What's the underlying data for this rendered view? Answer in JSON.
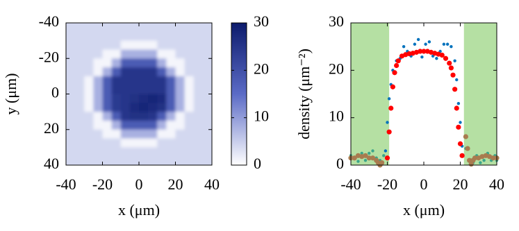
{
  "chart_data": [
    {
      "type": "heatmap",
      "xlabel": "x (μm)",
      "ylabel": "y (μm)",
      "xlim": [
        -40,
        40
      ],
      "xticks": [
        -40,
        -20,
        0,
        20,
        40
      ],
      "ylim": [
        40,
        -40
      ],
      "yticks": [
        -40,
        -20,
        0,
        20,
        40
      ],
      "colormap": [
        "#ffffff",
        "#5b6bc6",
        "#0c1b6c"
      ],
      "colorbar": {
        "lim": [
          0,
          30
        ],
        "ticks": [
          0,
          10,
          20,
          30
        ]
      },
      "x": [
        -37.5,
        -32.5,
        -27.5,
        -22.5,
        -17.5,
        -12.5,
        -7.5,
        -2.5,
        2.5,
        7.5,
        12.5,
        17.5,
        22.5,
        27.5,
        32.5,
        37.5
      ],
      "y": [
        -37.5,
        -32.5,
        -27.5,
        -22.5,
        -17.5,
        -12.5,
        -7.5,
        -2.5,
        2.5,
        7.5,
        12.5,
        17.5,
        22.5,
        27.5,
        32.5,
        37.5
      ],
      "z": [
        [
          4,
          4,
          4,
          4,
          4,
          4,
          4,
          4,
          4,
          4,
          4,
          4,
          4,
          4,
          4,
          4
        ],
        [
          4,
          4,
          4,
          4,
          4,
          4,
          4,
          4,
          4,
          4,
          4,
          4,
          4,
          4,
          4,
          4
        ],
        [
          4,
          4,
          4,
          4,
          4,
          4,
          1,
          1,
          1,
          1,
          4,
          4,
          4,
          4,
          4,
          4
        ],
        [
          4,
          4,
          4,
          4,
          1,
          1,
          8,
          8,
          8,
          8,
          1,
          1,
          4,
          4,
          4,
          4
        ],
        [
          4,
          4,
          4,
          1,
          1,
          8,
          18,
          18,
          18,
          18,
          8,
          1,
          1,
          4,
          4,
          4
        ],
        [
          4,
          4,
          4,
          1,
          8,
          18,
          25,
          25,
          25,
          25,
          18,
          8,
          1,
          4,
          4,
          4
        ],
        [
          4,
          4,
          1,
          8,
          18,
          25,
          25,
          25,
          25,
          25,
          25,
          18,
          8,
          1,
          4,
          4
        ],
        [
          4,
          4,
          1,
          8,
          18,
          25,
          25,
          25,
          25,
          25,
          25,
          18,
          8,
          1,
          4,
          4
        ],
        [
          4,
          4,
          1,
          8,
          18,
          24,
          25,
          26,
          27,
          28,
          27,
          18,
          8,
          1,
          4,
          4
        ],
        [
          4,
          4,
          1,
          8,
          18,
          24,
          25,
          27,
          28,
          27,
          26,
          18,
          8,
          1,
          4,
          4
        ],
        [
          4,
          4,
          4,
          1,
          8,
          18,
          25,
          26,
          26,
          25,
          18,
          8,
          1,
          4,
          4,
          4
        ],
        [
          4,
          4,
          4,
          1,
          1,
          8,
          18,
          18,
          18,
          18,
          8,
          1,
          1,
          4,
          4,
          4
        ],
        [
          4,
          4,
          4,
          4,
          1,
          1,
          8,
          8,
          8,
          8,
          1,
          1,
          4,
          4,
          4,
          4
        ],
        [
          4,
          4,
          4,
          4,
          4,
          4,
          1,
          1,
          1,
          1,
          4,
          4,
          4,
          4,
          4,
          4
        ],
        [
          4,
          4,
          4,
          4,
          4,
          4,
          4,
          4,
          4,
          4,
          4,
          4,
          4,
          4,
          4,
          4
        ],
        [
          4,
          4,
          4,
          4,
          4,
          4,
          4,
          4,
          4,
          4,
          4,
          4,
          4,
          4,
          4,
          4
        ]
      ]
    },
    {
      "type": "scatter",
      "xlabel": "x (μm)",
      "ylabel": "density (μm⁻²)",
      "xlim": [
        -40,
        40
      ],
      "xticks": [
        -40,
        -20,
        0,
        20,
        40
      ],
      "ylim": [
        0,
        30
      ],
      "yticks": [
        0,
        10,
        20,
        30
      ],
      "shaded_regions": [
        [
          -40,
          -19
        ],
        [
          22,
          40
        ]
      ],
      "shade_color": "#b5e0a3",
      "series": [
        {
          "color": "#0072bd",
          "size": 2.2,
          "x": [
            -21,
            -20,
            -19,
            -18,
            -17,
            -15,
            -13,
            -11,
            -9,
            -7,
            -5,
            -3,
            -1,
            1,
            3,
            5,
            7,
            9,
            11,
            13,
            15,
            17,
            18,
            19,
            20,
            21
          ],
          "values": [
            3,
            9,
            14,
            17,
            20,
            22,
            22.5,
            25,
            24,
            23,
            25.5,
            26.5,
            22.8,
            25.5,
            26,
            23,
            22.5,
            24,
            25.5,
            25.5,
            25,
            22,
            18,
            13,
            9,
            4
          ]
        },
        {
          "color": "#3aa58a",
          "size": 2.2,
          "x": [
            -40,
            -38,
            -36,
            -34,
            -32,
            -30,
            -28,
            -26,
            -24,
            -22,
            23,
            25,
            27,
            29,
            31,
            33,
            35,
            37,
            39,
            40
          ],
          "values": [
            2,
            1.5,
            0.8,
            2.5,
            1,
            2.5,
            3,
            1.5,
            1,
            2,
            3.5,
            1,
            0.5,
            2,
            0.5,
            1,
            2.5,
            1,
            2,
            1
          ]
        },
        {
          "color": "#a87b4f",
          "size": 3.6,
          "x": [
            -40,
            -38,
            -36,
            -34,
            -32,
            -30,
            -28,
            -26,
            -25,
            -24,
            -23,
            23,
            24,
            25,
            26,
            27,
            28,
            30,
            32,
            34,
            36,
            38,
            40
          ],
          "values": [
            1.5,
            1.5,
            2,
            1.8,
            2,
            1.5,
            1.5,
            1,
            0.5,
            0,
            0.5,
            6,
            3.5,
            1,
            0.2,
            1,
            1.5,
            1.5,
            1.8,
            2,
            1.8,
            1.5,
            1.5
          ]
        },
        {
          "color": "#ff0000",
          "size": 3.6,
          "x": [
            -20,
            -19,
            -18,
            -17,
            -16,
            -15,
            -14,
            -12,
            -10,
            -8,
            -6,
            -4,
            -2,
            0,
            2,
            4,
            6,
            8,
            10,
            12,
            14,
            15,
            16,
            17,
            18,
            19,
            20,
            21
          ],
          "values": [
            1.5,
            7,
            12,
            16.5,
            19.5,
            21,
            22,
            23,
            23.3,
            23.5,
            23.6,
            23.8,
            24,
            24,
            24,
            23.8,
            23.6,
            23.4,
            23.2,
            22.5,
            21.5,
            20.5,
            19,
            16,
            12,
            8,
            4.5,
            2
          ]
        }
      ]
    }
  ]
}
